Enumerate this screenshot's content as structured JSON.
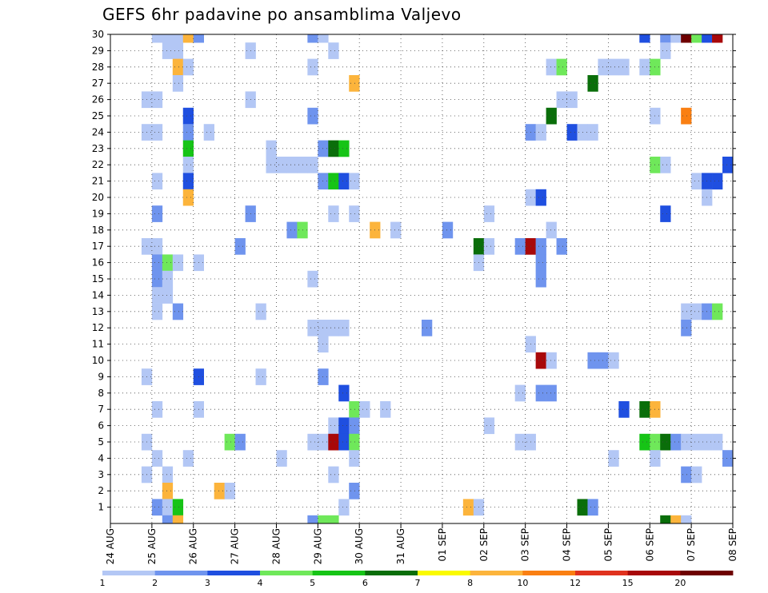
{
  "chart_data": {
    "type": "heatmap",
    "title": "GEFS 6hr padavine po ansamblima Valjevo",
    "xlabel": "",
    "ylabel": "",
    "y_categories": [
      "1",
      "2",
      "3",
      "4",
      "5",
      "6",
      "7",
      "8",
      "9",
      "10",
      "11",
      "12",
      "13",
      "14",
      "15",
      "16",
      "17",
      "18",
      "19",
      "20",
      "21",
      "22",
      "23",
      "24",
      "25",
      "26",
      "27",
      "28",
      "29",
      "30"
    ],
    "x_tick_labels": [
      "24 AUG",
      "25 AUG",
      "26 AUG",
      "27 AUG",
      "28 AUG",
      "29 AUG",
      "30 AUG",
      "31 AUG",
      "01 SEP",
      "02 SEP",
      "03 SEP",
      "04 SEP",
      "05 SEP",
      "06 SEP",
      "07 SEP",
      "08 SEP"
    ],
    "x_step": "6hr",
    "grid": "dotted",
    "colorbar": {
      "ticks": [
        "1",
        "2",
        "3",
        "4",
        "5",
        "6",
        "7",
        "8",
        "10",
        "12",
        "15",
        "20"
      ],
      "colors": [
        "#b3c7f5",
        "#6f94ee",
        "#1f4fe0",
        "#6fe85a",
        "#16c416",
        "#0a6e0a",
        "#fafa00",
        "#fcb43c",
        "#fa7f12",
        "#e0321e",
        "#a8080a",
        "#6e0000"
      ]
    },
    "cells": [
      {
        "member": 30,
        "slot": 4,
        "value": 1.5
      },
      {
        "member": 30,
        "slot": 5,
        "value": 1.5
      },
      {
        "member": 30,
        "slot": 6,
        "value": 1.5
      },
      {
        "member": 30,
        "slot": 7,
        "value": 8
      },
      {
        "member": 30,
        "slot": 8,
        "value": 2.5
      },
      {
        "member": 30,
        "slot": 19,
        "value": 2.5
      },
      {
        "member": 30,
        "slot": 20,
        "value": 1.5
      },
      {
        "member": 30,
        "slot": 51,
        "value": 3.5
      },
      {
        "member": 30,
        "slot": 53,
        "value": 2.5
      },
      {
        "member": 30,
        "slot": 54,
        "value": 1.5
      },
      {
        "member": 30,
        "slot": 55,
        "value": 25
      },
      {
        "member": 30,
        "slot": 56,
        "value": 4.5
      },
      {
        "member": 30,
        "slot": 57,
        "value": 3.5
      },
      {
        "member": 30,
        "slot": 58,
        "value": 17
      },
      {
        "member": 30,
        "slot": 60,
        "value": 5.5
      },
      {
        "member": 29,
        "slot": 5,
        "value": 1.5
      },
      {
        "member": 29,
        "slot": 6,
        "value": 1.5
      },
      {
        "member": 29,
        "slot": 13,
        "value": 1.5
      },
      {
        "member": 29,
        "slot": 21,
        "value": 1.5
      },
      {
        "member": 29,
        "slot": 53,
        "value": 1.5
      },
      {
        "member": 28,
        "slot": 6,
        "value": 9
      },
      {
        "member": 28,
        "slot": 7,
        "value": 1.5
      },
      {
        "member": 28,
        "slot": 19,
        "value": 1.5
      },
      {
        "member": 28,
        "slot": 42,
        "value": 1.5
      },
      {
        "member": 28,
        "slot": 43,
        "value": 4.5
      },
      {
        "member": 28,
        "slot": 47,
        "value": 1.5
      },
      {
        "member": 28,
        "slot": 48,
        "value": 1.5
      },
      {
        "member": 28,
        "slot": 49,
        "value": 1.5
      },
      {
        "member": 28,
        "slot": 51,
        "value": 1.5
      },
      {
        "member": 28,
        "slot": 52,
        "value": 4.5
      },
      {
        "member": 27,
        "slot": 6,
        "value": 1.5
      },
      {
        "member": 27,
        "slot": 23,
        "value": 9
      },
      {
        "member": 27,
        "slot": 46,
        "value": 6.5
      },
      {
        "member": 26,
        "slot": 3,
        "value": 1.5
      },
      {
        "member": 26,
        "slot": 4,
        "value": 1.5
      },
      {
        "member": 26,
        "slot": 13,
        "value": 1.5
      },
      {
        "member": 26,
        "slot": 43,
        "value": 1.5
      },
      {
        "member": 26,
        "slot": 44,
        "value": 1.5
      },
      {
        "member": 26,
        "slot": 60,
        "value": 2.5
      },
      {
        "member": 25,
        "slot": 7,
        "value": 3.5
      },
      {
        "member": 25,
        "slot": 19,
        "value": 2.5
      },
      {
        "member": 25,
        "slot": 42,
        "value": 6.5
      },
      {
        "member": 25,
        "slot": 52,
        "value": 1.5
      },
      {
        "member": 25,
        "slot": 55,
        "value": 11
      },
      {
        "member": 24,
        "slot": 3,
        "value": 1.5
      },
      {
        "member": 24,
        "slot": 4,
        "value": 1.5
      },
      {
        "member": 24,
        "slot": 7,
        "value": 2.5
      },
      {
        "member": 24,
        "slot": 9,
        "value": 1.5
      },
      {
        "member": 24,
        "slot": 40,
        "value": 2.5
      },
      {
        "member": 24,
        "slot": 41,
        "value": 1.5
      },
      {
        "member": 24,
        "slot": 44,
        "value": 3.5
      },
      {
        "member": 24,
        "slot": 45,
        "value": 1.5
      },
      {
        "member": 24,
        "slot": 46,
        "value": 1.5
      },
      {
        "member": 23,
        "slot": 7,
        "value": 5.5
      },
      {
        "member": 23,
        "slot": 15,
        "value": 1.5
      },
      {
        "member": 23,
        "slot": 20,
        "value": 2.5
      },
      {
        "member": 23,
        "slot": 21,
        "value": 6.5
      },
      {
        "member": 23,
        "slot": 22,
        "value": 5.5
      },
      {
        "member": 22,
        "slot": 7,
        "value": 1.5
      },
      {
        "member": 22,
        "slot": 15,
        "value": 1.5
      },
      {
        "member": 22,
        "slot": 16,
        "value": 1.5
      },
      {
        "member": 22,
        "slot": 17,
        "value": 1.5
      },
      {
        "member": 22,
        "slot": 18,
        "value": 1.5
      },
      {
        "member": 22,
        "slot": 19,
        "value": 1.5
      },
      {
        "member": 22,
        "slot": 52,
        "value": 4.5
      },
      {
        "member": 22,
        "slot": 53,
        "value": 1.5
      },
      {
        "member": 22,
        "slot": 59,
        "value": 3.5
      },
      {
        "member": 22,
        "slot": 60,
        "value": 6.5
      },
      {
        "member": 21,
        "slot": 4,
        "value": 1.5
      },
      {
        "member": 21,
        "slot": 7,
        "value": 3.5
      },
      {
        "member": 21,
        "slot": 20,
        "value": 2.5
      },
      {
        "member": 21,
        "slot": 21,
        "value": 5.5
      },
      {
        "member": 21,
        "slot": 22,
        "value": 3.5
      },
      {
        "member": 21,
        "slot": 23,
        "value": 1.5
      },
      {
        "member": 21,
        "slot": 56,
        "value": 1.5
      },
      {
        "member": 21,
        "slot": 57,
        "value": 3.5
      },
      {
        "member": 21,
        "slot": 58,
        "value": 3.5
      },
      {
        "member": 20,
        "slot": 7,
        "value": 8
      },
      {
        "member": 20,
        "slot": 40,
        "value": 1.5
      },
      {
        "member": 20,
        "slot": 41,
        "value": 3.5
      },
      {
        "member": 20,
        "slot": 57,
        "value": 1.5
      },
      {
        "member": 19,
        "slot": 4,
        "value": 2.5
      },
      {
        "member": 19,
        "slot": 13,
        "value": 2.5
      },
      {
        "member": 19,
        "slot": 21,
        "value": 1.5
      },
      {
        "member": 19,
        "slot": 23,
        "value": 1.5
      },
      {
        "member": 19,
        "slot": 36,
        "value": 1.5
      },
      {
        "member": 19,
        "slot": 53,
        "value": 3.5
      },
      {
        "member": 18,
        "slot": 17,
        "value": 2.5
      },
      {
        "member": 18,
        "slot": 18,
        "value": 4.5
      },
      {
        "member": 18,
        "slot": 25,
        "value": 8
      },
      {
        "member": 18,
        "slot": 27,
        "value": 1.5
      },
      {
        "member": 18,
        "slot": 32,
        "value": 2.5
      },
      {
        "member": 18,
        "slot": 42,
        "value": 1.5
      },
      {
        "member": 18,
        "slot": 60,
        "value": 2.5
      },
      {
        "member": 17,
        "slot": 3,
        "value": 1.5
      },
      {
        "member": 17,
        "slot": 4,
        "value": 1.5
      },
      {
        "member": 17,
        "slot": 12,
        "value": 2.5
      },
      {
        "member": 17,
        "slot": 35,
        "value": 6.5
      },
      {
        "member": 17,
        "slot": 36,
        "value": 1.5
      },
      {
        "member": 17,
        "slot": 39,
        "value": 2.5
      },
      {
        "member": 17,
        "slot": 40,
        "value": 17
      },
      {
        "member": 17,
        "slot": 41,
        "value": 2.5
      },
      {
        "member": 17,
        "slot": 43,
        "value": 2.5
      },
      {
        "member": 17,
        "slot": 60,
        "value": 1.5
      },
      {
        "member": 16,
        "slot": 4,
        "value": 2.5
      },
      {
        "member": 16,
        "slot": 5,
        "value": 4.5
      },
      {
        "member": 16,
        "slot": 6,
        "value": 1.5
      },
      {
        "member": 16,
        "slot": 8,
        "value": 1.5
      },
      {
        "member": 16,
        "slot": 35,
        "value": 1.5
      },
      {
        "member": 16,
        "slot": 41,
        "value": 2.5
      },
      {
        "member": 15,
        "slot": 4,
        "value": 2.5
      },
      {
        "member": 15,
        "slot": 5,
        "value": 1.5
      },
      {
        "member": 15,
        "slot": 19,
        "value": 1.5
      },
      {
        "member": 15,
        "slot": 41,
        "value": 2.5
      },
      {
        "member": 14,
        "slot": 4,
        "value": 1.5
      },
      {
        "member": 14,
        "slot": 5,
        "value": 1.5
      },
      {
        "member": 13,
        "slot": 4,
        "value": 1.5
      },
      {
        "member": 13,
        "slot": 6,
        "value": 2.5
      },
      {
        "member": 13,
        "slot": 14,
        "value": 1.5
      },
      {
        "member": 13,
        "slot": 55,
        "value": 1.5
      },
      {
        "member": 13,
        "slot": 56,
        "value": 1.5
      },
      {
        "member": 13,
        "slot": 57,
        "value": 2.5
      },
      {
        "member": 13,
        "slot": 58,
        "value": 4.5
      },
      {
        "member": 12,
        "slot": 19,
        "value": 1.5
      },
      {
        "member": 12,
        "slot": 20,
        "value": 1.5
      },
      {
        "member": 12,
        "slot": 21,
        "value": 1.5
      },
      {
        "member": 12,
        "slot": 22,
        "value": 1.5
      },
      {
        "member": 12,
        "slot": 30,
        "value": 2.5
      },
      {
        "member": 12,
        "slot": 55,
        "value": 2.5
      },
      {
        "member": 12,
        "slot": 60,
        "value": 3.5
      },
      {
        "member": 11,
        "slot": 20,
        "value": 1.5
      },
      {
        "member": 11,
        "slot": 40,
        "value": 1.5
      },
      {
        "member": 10,
        "slot": 41,
        "value": 17
      },
      {
        "member": 10,
        "slot": 42,
        "value": 1.5
      },
      {
        "member": 10,
        "slot": 46,
        "value": 2.5
      },
      {
        "member": 10,
        "slot": 47,
        "value": 2.5
      },
      {
        "member": 10,
        "slot": 48,
        "value": 1.5
      },
      {
        "member": 9,
        "slot": 3,
        "value": 1.5
      },
      {
        "member": 9,
        "slot": 8,
        "value": 3.5
      },
      {
        "member": 9,
        "slot": 14,
        "value": 1.5
      },
      {
        "member": 9,
        "slot": 20,
        "value": 2.5
      },
      {
        "member": 8,
        "slot": 22,
        "value": 3.5
      },
      {
        "member": 8,
        "slot": 39,
        "value": 1.5
      },
      {
        "member": 8,
        "slot": 41,
        "value": 2.5
      },
      {
        "member": 8,
        "slot": 42,
        "value": 2.5
      },
      {
        "member": 7,
        "slot": 4,
        "value": 1.5
      },
      {
        "member": 7,
        "slot": 8,
        "value": 1.5
      },
      {
        "member": 7,
        "slot": 23,
        "value": 4.5
      },
      {
        "member": 7,
        "slot": 24,
        "value": 1.5
      },
      {
        "member": 7,
        "slot": 26,
        "value": 1.5
      },
      {
        "member": 7,
        "slot": 49,
        "value": 3.5
      },
      {
        "member": 7,
        "slot": 51,
        "value": 6.5
      },
      {
        "member": 7,
        "slot": 52,
        "value": 9
      },
      {
        "member": 6,
        "slot": 21,
        "value": 1.5
      },
      {
        "member": 6,
        "slot": 22,
        "value": 3.5
      },
      {
        "member": 6,
        "slot": 23,
        "value": 2.5
      },
      {
        "member": 6,
        "slot": 36,
        "value": 1.5
      },
      {
        "member": 5,
        "slot": 3,
        "value": 1.5
      },
      {
        "member": 5,
        "slot": 11,
        "value": 4.5
      },
      {
        "member": 5,
        "slot": 12,
        "value": 2.5
      },
      {
        "member": 5,
        "slot": 19,
        "value": 1.5
      },
      {
        "member": 5,
        "slot": 20,
        "value": 1.5
      },
      {
        "member": 5,
        "slot": 21,
        "value": 17
      },
      {
        "member": 5,
        "slot": 22,
        "value": 3.5
      },
      {
        "member": 5,
        "slot": 23,
        "value": 4.5
      },
      {
        "member": 5,
        "slot": 39,
        "value": 1.5
      },
      {
        "member": 5,
        "slot": 40,
        "value": 1.5
      },
      {
        "member": 5,
        "slot": 51,
        "value": 5.5
      },
      {
        "member": 5,
        "slot": 52,
        "value": 4.5
      },
      {
        "member": 5,
        "slot": 53,
        "value": 6.5
      },
      {
        "member": 5,
        "slot": 54,
        "value": 2.5
      },
      {
        "member": 5,
        "slot": 55,
        "value": 1.5
      },
      {
        "member": 5,
        "slot": 56,
        "value": 1.5
      },
      {
        "member": 5,
        "slot": 57,
        "value": 1.5
      },
      {
        "member": 5,
        "slot": 58,
        "value": 1.5
      },
      {
        "member": 4,
        "slot": 4,
        "value": 1.5
      },
      {
        "member": 4,
        "slot": 7,
        "value": 1.5
      },
      {
        "member": 4,
        "slot": 16,
        "value": 1.5
      },
      {
        "member": 4,
        "slot": 23,
        "value": 1.5
      },
      {
        "member": 4,
        "slot": 48,
        "value": 1.5
      },
      {
        "member": 4,
        "slot": 52,
        "value": 1.5
      },
      {
        "member": 4,
        "slot": 59,
        "value": 2.5
      },
      {
        "member": 4,
        "slot": 60,
        "value": 2.5
      },
      {
        "member": 3,
        "slot": 3,
        "value": 1.5
      },
      {
        "member": 3,
        "slot": 5,
        "value": 1.5
      },
      {
        "member": 3,
        "slot": 21,
        "value": 1.5
      },
      {
        "member": 3,
        "slot": 55,
        "value": 2.5
      },
      {
        "member": 3,
        "slot": 56,
        "value": 1.5
      },
      {
        "member": 2,
        "slot": 5,
        "value": 9
      },
      {
        "member": 2,
        "slot": 10,
        "value": 9
      },
      {
        "member": 2,
        "slot": 11,
        "value": 1.5
      },
      {
        "member": 2,
        "slot": 23,
        "value": 2.5
      },
      {
        "member": 1,
        "slot": 4,
        "value": 2.5
      },
      {
        "member": 1,
        "slot": 5,
        "value": 1.5
      },
      {
        "member": 1,
        "slot": 6,
        "value": 5.5
      },
      {
        "member": 1,
        "slot": 22,
        "value": 1.5
      },
      {
        "member": 1,
        "slot": 34,
        "value": 8
      },
      {
        "member": 1,
        "slot": 35,
        "value": 1.5
      },
      {
        "member": 1,
        "slot": 45,
        "value": 6.5
      },
      {
        "member": 1,
        "slot": 46,
        "value": 2.5
      },
      {
        "member": 0,
        "slot": 5,
        "value": 2.5
      },
      {
        "member": 0,
        "slot": 6,
        "value": 9
      },
      {
        "member": 0,
        "slot": 19,
        "value": 2.5
      },
      {
        "member": 0,
        "slot": 20,
        "value": 4.5
      },
      {
        "member": 0,
        "slot": 21,
        "value": 4.5
      },
      {
        "member": 0,
        "slot": 53,
        "value": 6.5
      },
      {
        "member": 0,
        "slot": 54,
        "value": 9
      },
      {
        "member": 0,
        "slot": 55,
        "value": 1.5
      }
    ]
  }
}
